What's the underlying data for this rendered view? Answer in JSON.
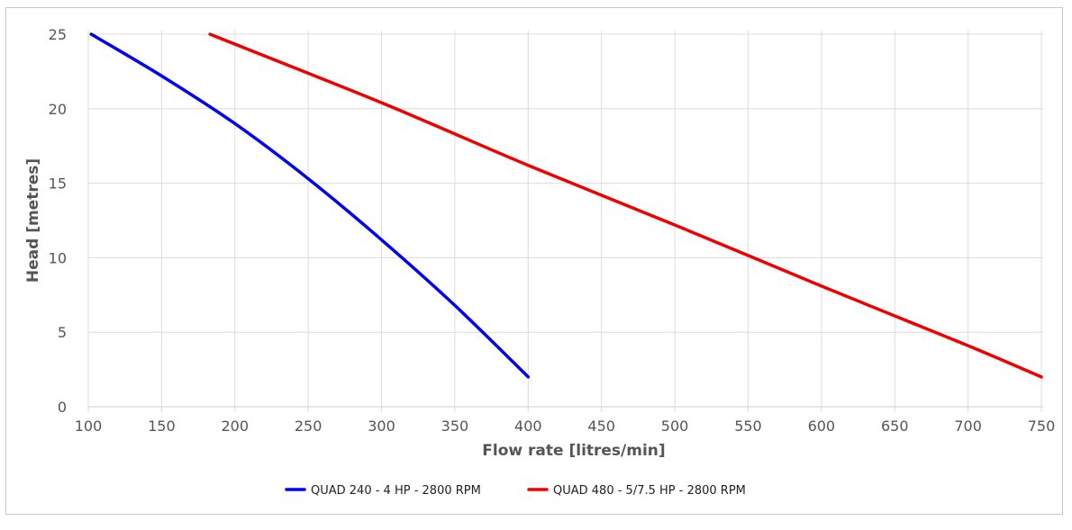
{
  "chart_data": {
    "type": "line",
    "title": "",
    "xlabel": "Flow rate [litres/min]",
    "ylabel": "Head [metres]",
    "xlim": [
      100,
      750
    ],
    "ylim": [
      0,
      25
    ],
    "xticks": [
      100,
      150,
      200,
      250,
      300,
      350,
      400,
      450,
      500,
      550,
      600,
      650,
      700,
      750
    ],
    "yticks": [
      0,
      5,
      10,
      15,
      20,
      25
    ],
    "grid": true,
    "legend_position": "bottom-center",
    "series": [
      {
        "name": "QUAD 240 - 4 HP - 2800 RPM",
        "color": "#0000ee",
        "x": [
          102,
          150,
          200,
          250,
          300,
          350,
          400
        ],
        "y": [
          25,
          22.2,
          19,
          15.3,
          11.2,
          6.8,
          2
        ]
      },
      {
        "name": "QUAD 480 - 5/7.5 HP - 2800 RPM",
        "color": "#ee0000",
        "x": [
          183,
          300,
          400,
          500,
          600,
          700,
          750
        ],
        "y": [
          25,
          20.4,
          16.2,
          12.2,
          8.1,
          4.1,
          2
        ]
      }
    ]
  }
}
